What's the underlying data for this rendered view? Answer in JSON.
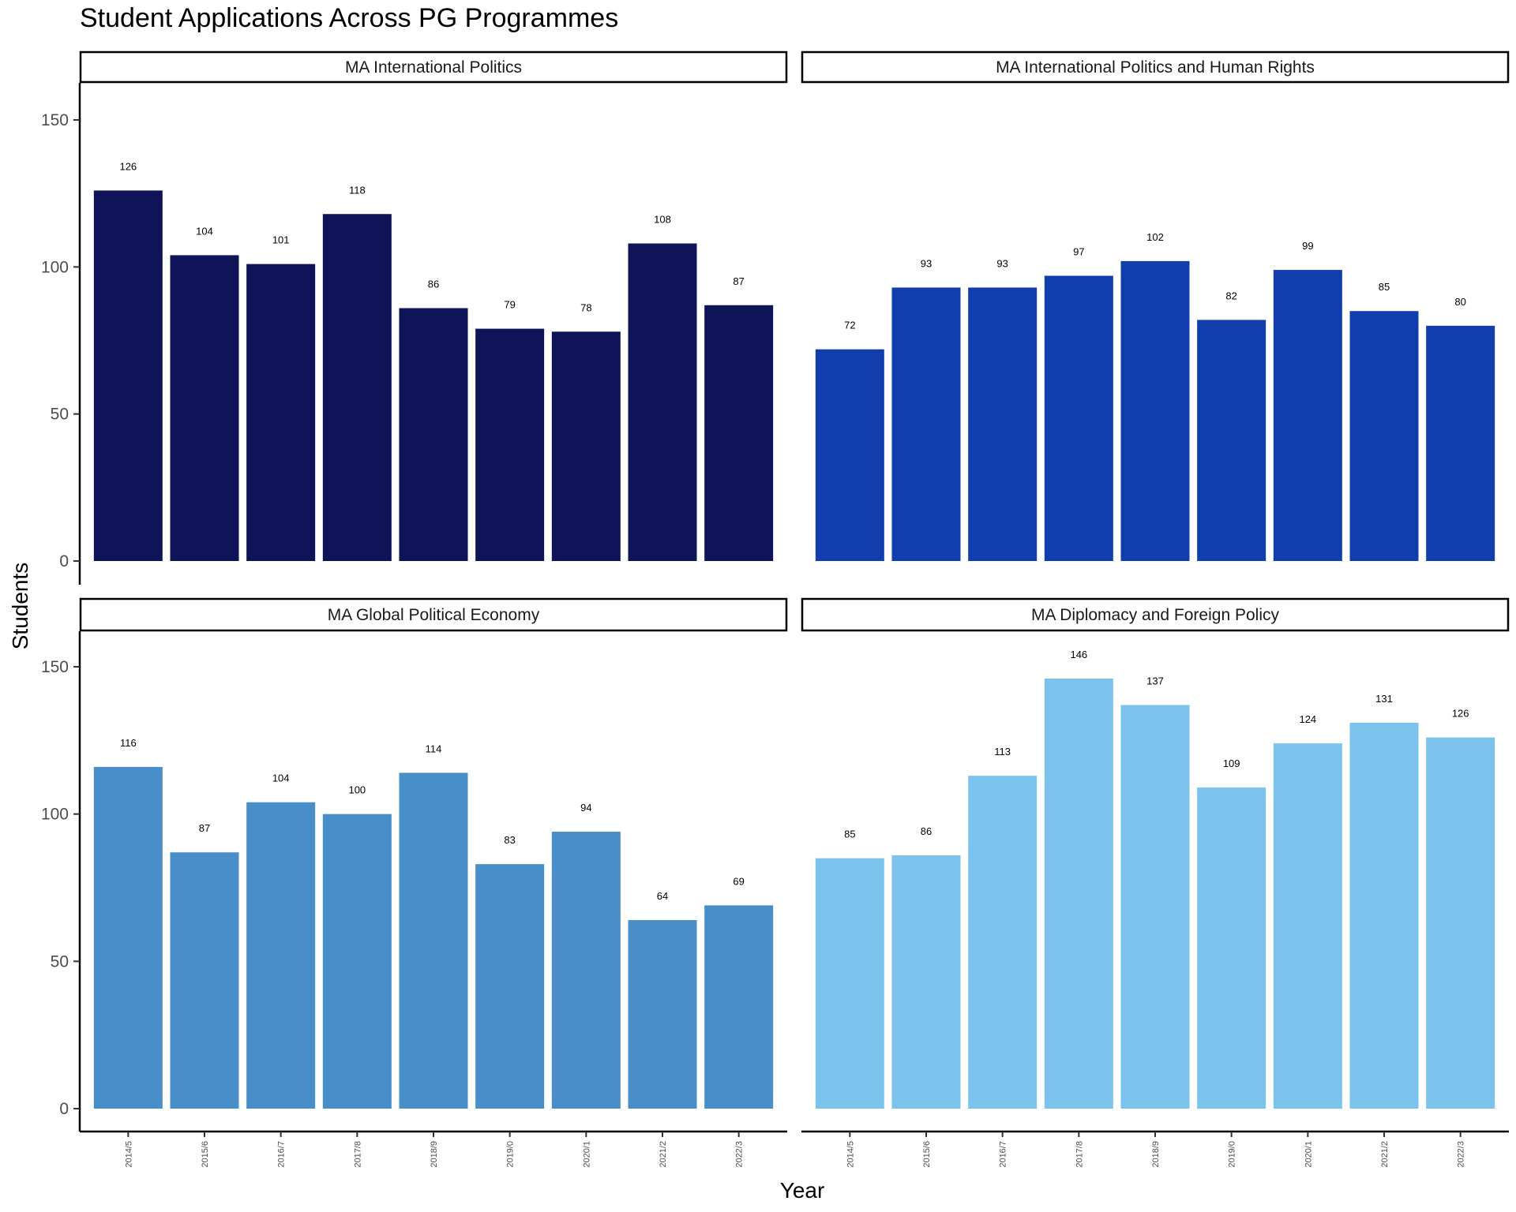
{
  "chart_data": {
    "type": "bar",
    "title": "Student Applications Across PG Programmes",
    "xlabel": "Year",
    "ylabel": "Students",
    "ylim": [
      0,
      160
    ],
    "yticks": [
      0,
      50,
      100,
      150
    ],
    "categories": [
      "2014/5",
      "2015/6",
      "2016/7",
      "2017/8",
      "2018/9",
      "2019/0",
      "2020/1",
      "2021/2",
      "2022/3"
    ],
    "grid": false,
    "panels": [
      {
        "name": "MA International Politics",
        "color": "#0F1357",
        "values": [
          126,
          104,
          101,
          118,
          86,
          79,
          78,
          108,
          87
        ]
      },
      {
        "name": "MA International Politics and Human Rights",
        "color": "#113DAD",
        "values": [
          72,
          93,
          93,
          97,
          102,
          82,
          99,
          85,
          80
        ]
      },
      {
        "name": "MA Global Political Economy",
        "color": "#488EC9",
        "values": [
          116,
          87,
          104,
          100,
          114,
          83,
          94,
          64,
          69
        ]
      },
      {
        "name": "MA Diplomacy and Foreign Policy",
        "color": "#7BC3EC",
        "values": [
          85,
          86,
          113,
          146,
          137,
          109,
          124,
          131,
          126
        ]
      }
    ]
  }
}
